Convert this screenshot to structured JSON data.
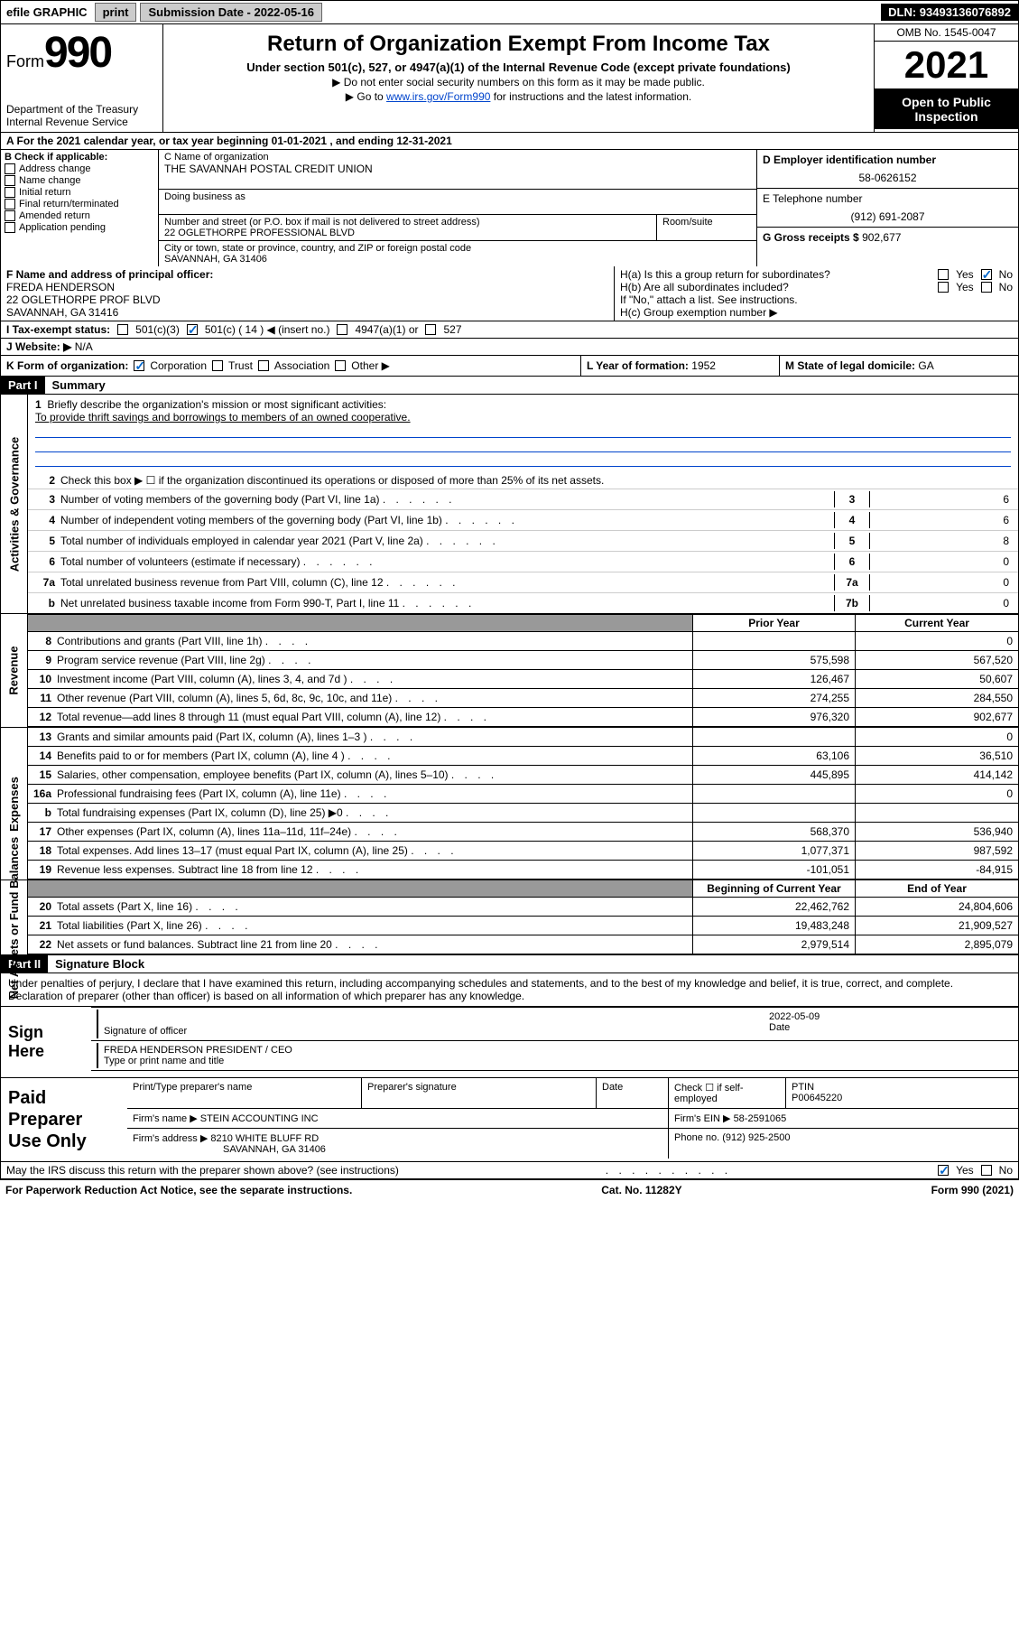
{
  "topbar": {
    "efile": "efile GRAPHIC",
    "print": "print",
    "sub_label": "Submission Date - 2022-05-16",
    "dln": "DLN: 93493136076892"
  },
  "header": {
    "form_word": "Form",
    "form_num": "990",
    "dept": "Department of the Treasury\nInternal Revenue Service",
    "title": "Return of Organization Exempt From Income Tax",
    "subtitle": "Under section 501(c), 527, or 4947(a)(1) of the Internal Revenue Code (except private foundations)",
    "instr1": "▶ Do not enter social security numbers on this form as it may be made public.",
    "instr2_pre": "▶ Go to ",
    "instr2_link": "www.irs.gov/Form990",
    "instr2_post": " for instructions and the latest information.",
    "omb": "OMB No. 1545-0047",
    "year": "2021",
    "open": "Open to Public Inspection"
  },
  "row_a": "A For the 2021 calendar year, or tax year beginning 01-01-2021   , and ending 12-31-2021",
  "col_b": {
    "title": "B Check if applicable:",
    "opts": [
      "Address change",
      "Name change",
      "Initial return",
      "Final return/terminated",
      "Amended return",
      "Application pending"
    ]
  },
  "org": {
    "c_label": "C Name of organization",
    "name": "THE SAVANNAH POSTAL CREDIT UNION",
    "dba_label": "Doing business as",
    "dba": "",
    "addr_label": "Number and street (or P.O. box if mail is not delivered to street address)",
    "addr": "22 OGLETHORPE PROFESSIONAL BLVD",
    "room_label": "Room/suite",
    "city_label": "City or town, state or province, country, and ZIP or foreign postal code",
    "city": "SAVANNAH, GA  31406"
  },
  "right": {
    "d_label": "D Employer identification number",
    "ein": "58-0626152",
    "e_label": "E Telephone number",
    "phone": "(912) 691-2087",
    "g_label": "G Gross receipts $",
    "gross": "902,677"
  },
  "f": {
    "label": "F Name and address of principal officer:",
    "name": "FREDA HENDERSON",
    "addr": "22 OGLETHORPE PROF BLVD",
    "city": "SAVANNAH, GA  31416"
  },
  "h": {
    "a": "H(a)  Is this a group return for subordinates?",
    "b": "H(b)  Are all subordinates included?",
    "note": "If \"No,\" attach a list. See instructions.",
    "c": "H(c)  Group exemption number ▶",
    "yes": "Yes",
    "no": "No"
  },
  "i": {
    "label": "I   Tax-exempt status:",
    "o1": "501(c)(3)",
    "o2": "501(c) ( 14 ) ◀ (insert no.)",
    "o3": "4947(a)(1) or",
    "o4": "527"
  },
  "j": {
    "label": "J   Website: ▶",
    "val": "N/A"
  },
  "k": {
    "label": "K Form of organization:",
    "opts": [
      "Corporation",
      "Trust",
      "Association",
      "Other ▶"
    ],
    "l_label": "L Year of formation:",
    "l_val": "1952",
    "m_label": "M State of legal domicile:",
    "m_val": "GA"
  },
  "part1": {
    "hdr": "Part I",
    "title": "Summary",
    "line1": "Briefly describe the organization's mission or most significant activities:",
    "mission": "To provide thrift savings and borrowings to members of an owned cooperative.",
    "line2": "Check this box ▶ ☐  if the organization discontinued its operations or disposed of more than 25% of its net assets.",
    "vlabel_gov": "Activities & Governance",
    "vlabel_rev": "Revenue",
    "vlabel_exp": "Expenses",
    "vlabel_net": "Net Assets or Fund Balances"
  },
  "gov_lines": [
    {
      "n": "3",
      "t": "Number of voting members of the governing body (Part VI, line 1a)",
      "box": "3",
      "v": "6"
    },
    {
      "n": "4",
      "t": "Number of independent voting members of the governing body (Part VI, line 1b)",
      "box": "4",
      "v": "6"
    },
    {
      "n": "5",
      "t": "Total number of individuals employed in calendar year 2021 (Part V, line 2a)",
      "box": "5",
      "v": "8"
    },
    {
      "n": "6",
      "t": "Total number of volunteers (estimate if necessary)",
      "box": "6",
      "v": "0"
    },
    {
      "n": "7a",
      "t": "Total unrelated business revenue from Part VIII, column (C), line 12",
      "box": "7a",
      "v": "0"
    },
    {
      "n": "b",
      "t": "Net unrelated business taxable income from Form 990-T, Part I, line 11",
      "box": "7b",
      "v": "0"
    }
  ],
  "col_hdrs": {
    "prior": "Prior Year",
    "current": "Current Year",
    "begin": "Beginning of Current Year",
    "end": "End of Year"
  },
  "rev_lines": [
    {
      "n": "8",
      "t": "Contributions and grants (Part VIII, line 1h)",
      "p": "",
      "c": "0"
    },
    {
      "n": "9",
      "t": "Program service revenue (Part VIII, line 2g)",
      "p": "575,598",
      "c": "567,520"
    },
    {
      "n": "10",
      "t": "Investment income (Part VIII, column (A), lines 3, 4, and 7d )",
      "p": "126,467",
      "c": "50,607"
    },
    {
      "n": "11",
      "t": "Other revenue (Part VIII, column (A), lines 5, 6d, 8c, 9c, 10c, and 11e)",
      "p": "274,255",
      "c": "284,550"
    },
    {
      "n": "12",
      "t": "Total revenue—add lines 8 through 11 (must equal Part VIII, column (A), line 12)",
      "p": "976,320",
      "c": "902,677"
    }
  ],
  "exp_lines": [
    {
      "n": "13",
      "t": "Grants and similar amounts paid (Part IX, column (A), lines 1–3 )",
      "p": "",
      "c": "0"
    },
    {
      "n": "14",
      "t": "Benefits paid to or for members (Part IX, column (A), line 4 )",
      "p": "63,106",
      "c": "36,510"
    },
    {
      "n": "15",
      "t": "Salaries, other compensation, employee benefits (Part IX, column (A), lines 5–10)",
      "p": "445,895",
      "c": "414,142"
    },
    {
      "n": "16a",
      "t": "Professional fundraising fees (Part IX, column (A), line 11e)",
      "p": "",
      "c": "0"
    },
    {
      "n": "b",
      "t": "Total fundraising expenses (Part IX, column (D), line 25) ▶0",
      "p": "",
      "c": ""
    },
    {
      "n": "17",
      "t": "Other expenses (Part IX, column (A), lines 11a–11d, 11f–24e)",
      "p": "568,370",
      "c": "536,940"
    },
    {
      "n": "18",
      "t": "Total expenses. Add lines 13–17 (must equal Part IX, column (A), line 25)",
      "p": "1,077,371",
      "c": "987,592"
    },
    {
      "n": "19",
      "t": "Revenue less expenses. Subtract line 18 from line 12",
      "p": "-101,051",
      "c": "-84,915"
    }
  ],
  "net_lines": [
    {
      "n": "20",
      "t": "Total assets (Part X, line 16)",
      "p": "22,462,762",
      "c": "24,804,606"
    },
    {
      "n": "21",
      "t": "Total liabilities (Part X, line 26)",
      "p": "19,483,248",
      "c": "21,909,527"
    },
    {
      "n": "22",
      "t": "Net assets or fund balances. Subtract line 21 from line 20",
      "p": "2,979,514",
      "c": "2,895,079"
    }
  ],
  "part2": {
    "hdr": "Part II",
    "title": "Signature Block",
    "intro": "Under penalties of perjury, I declare that I have examined this return, including accompanying schedules and statements, and to the best of my knowledge and belief, it is true, correct, and complete. Declaration of preparer (other than officer) is based on all information of which preparer has any knowledge."
  },
  "sign": {
    "here": "Sign Here",
    "sig_label": "Signature of officer",
    "date_label": "Date",
    "date": "2022-05-09",
    "name": "FREDA HENDERSON  PRESIDENT / CEO",
    "name_label": "Type or print name and title"
  },
  "prep": {
    "label": "Paid Preparer Use Only",
    "h1": "Print/Type preparer's name",
    "h2": "Preparer's signature",
    "h3": "Date",
    "h4_pre": "Check ☐ if self-employed",
    "h5": "PTIN",
    "ptin": "P00645220",
    "firm_label": "Firm's name    ▶",
    "firm": "STEIN ACCOUNTING INC",
    "ein_label": "Firm's EIN ▶",
    "ein": "58-2591065",
    "addr_label": "Firm's address ▶",
    "addr": "8210 WHITE BLUFF RD",
    "city": "SAVANNAH, GA  31406",
    "phone_label": "Phone no.",
    "phone": "(912) 925-2500"
  },
  "footer": {
    "discuss": "May the IRS discuss this return with the preparer shown above? (see instructions)",
    "paperwork": "For Paperwork Reduction Act Notice, see the separate instructions.",
    "cat": "Cat. No. 11282Y",
    "formref": "Form 990 (2021)"
  }
}
